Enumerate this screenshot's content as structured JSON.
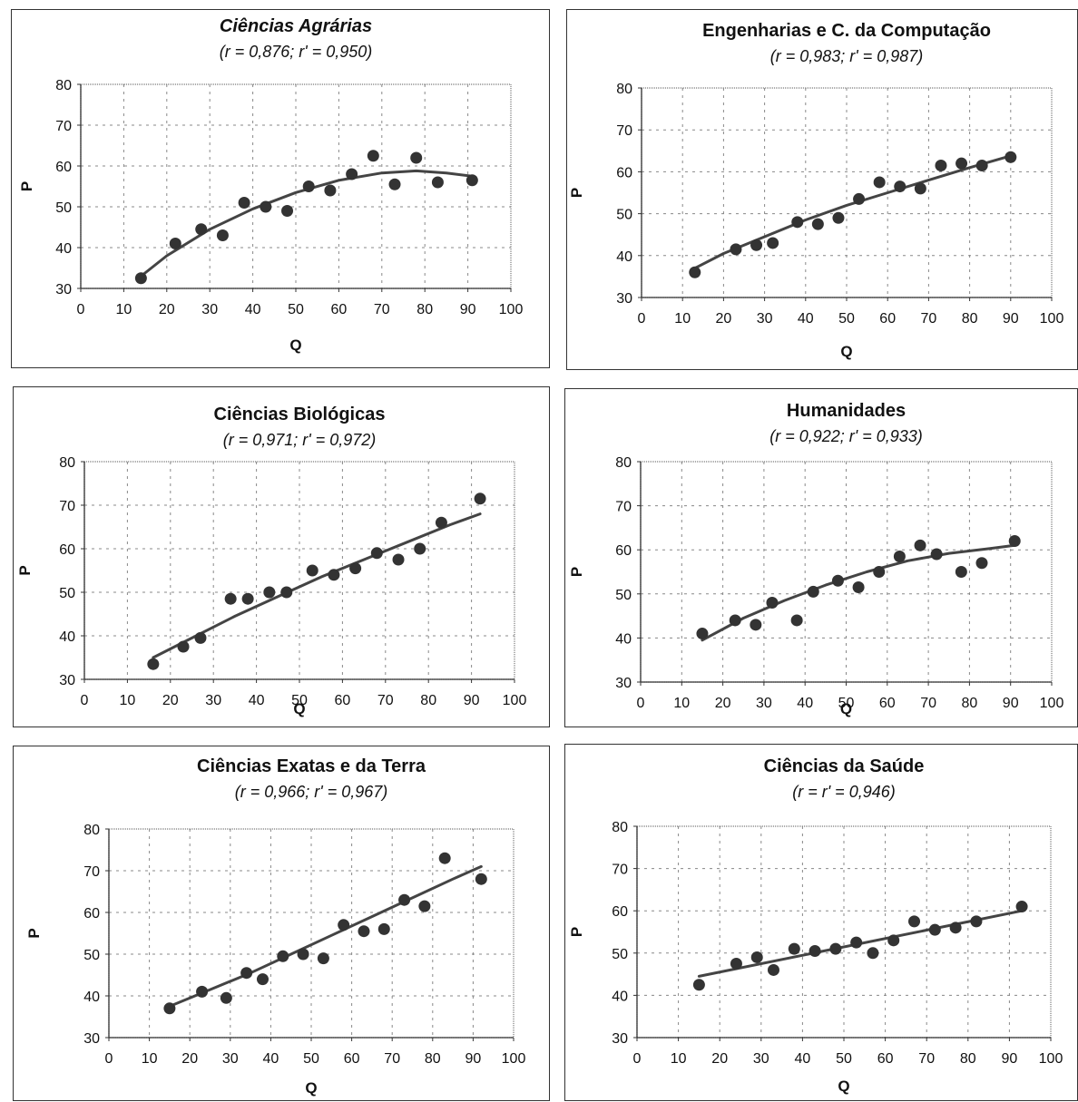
{
  "chart_data": [
    {
      "type": "scatter",
      "title": "Ciências Agrárias",
      "subtitle": "(r  = 0,876;  r' = 0,950)",
      "xlabel": "Q",
      "ylabel": "P",
      "xlim": [
        0,
        100
      ],
      "ylim": [
        30,
        80
      ],
      "xticks": [
        "0",
        "10",
        "20",
        "30",
        "40",
        "50",
        "60",
        "70",
        "80",
        "90",
        "100"
      ],
      "yticks": [
        "30",
        "40",
        "50",
        "60",
        "70",
        "80"
      ],
      "grid": true,
      "trend": "quadratic",
      "x": [
        14,
        22,
        28,
        33,
        38,
        43,
        48,
        53,
        58,
        63,
        68,
        73,
        78,
        83,
        91
      ],
      "y": [
        32.5,
        41,
        44.5,
        43,
        51,
        50,
        49,
        55,
        54,
        58,
        62.5,
        55.5,
        62,
        56,
        56.5
      ],
      "trend_x": [
        14,
        20,
        30,
        40,
        50,
        60,
        70,
        78,
        85,
        91
      ],
      "trend_y": [
        33,
        38,
        44.5,
        49.5,
        53.5,
        56.5,
        58.3,
        58.8,
        58.3,
        57.5
      ]
    },
    {
      "type": "scatter",
      "title": "Engenharias e C. da Computação",
      "subtitle": "(r = 0,983;  r' = 0,987)",
      "xlabel": "Q",
      "ylabel": "P",
      "xlim": [
        0,
        100
      ],
      "ylim": [
        30,
        80
      ],
      "xticks": [
        "0",
        "10",
        "20",
        "30",
        "40",
        "50",
        "60",
        "70",
        "80",
        "90",
        "100"
      ],
      "yticks": [
        "30",
        "40",
        "50",
        "60",
        "70",
        "80"
      ],
      "grid": true,
      "trend": "quadratic",
      "x": [
        13,
        23,
        28,
        32,
        38,
        43,
        48,
        53,
        58,
        63,
        68,
        73,
        78,
        83,
        90
      ],
      "y": [
        36,
        41.5,
        42.5,
        43,
        48,
        47.5,
        49,
        53.5,
        57.5,
        56.5,
        56,
        61.5,
        62,
        61.5,
        63.5
      ],
      "trend_x": [
        13,
        20,
        30,
        40,
        50,
        60,
        70,
        80,
        90
      ],
      "trend_y": [
        37,
        40.5,
        44.5,
        48.5,
        52,
        55,
        58,
        61,
        63.8
      ]
    },
    {
      "type": "scatter",
      "title": "Ciências Biológicas",
      "subtitle": "(r = 0,971;  r' = 0,972)",
      "xlabel": "Q",
      "ylabel": "P",
      "xlim": [
        0,
        100
      ],
      "ylim": [
        30,
        80
      ],
      "xticks": [
        "0",
        "10",
        "20",
        "30",
        "40",
        "50",
        "60",
        "70",
        "80",
        "90",
        "100"
      ],
      "yticks": [
        "30",
        "40",
        "50",
        "60",
        "70",
        "80"
      ],
      "grid": true,
      "trend": "quadratic",
      "x": [
        16,
        23,
        27,
        34,
        38,
        43,
        47,
        53,
        58,
        63,
        68,
        73,
        78,
        83,
        92
      ],
      "y": [
        33.5,
        37.5,
        39.5,
        48.5,
        48.5,
        50,
        50,
        55,
        54,
        55.5,
        59,
        57.5,
        60,
        66,
        71.5
      ],
      "trend_x": [
        16,
        25,
        35,
        45,
        55,
        65,
        75,
        85,
        92
      ],
      "trend_y": [
        35,
        39.5,
        44.5,
        49,
        53.5,
        57.5,
        61.5,
        65.5,
        68
      ]
    },
    {
      "type": "scatter",
      "title": "Humanidades",
      "subtitle": "(r = 0,922;  r' = 0,933)",
      "xlabel": "Q",
      "ylabel": "P",
      "xlim": [
        0,
        100
      ],
      "ylim": [
        30,
        80
      ],
      "xticks": [
        "0",
        "10",
        "20",
        "30",
        "40",
        "50",
        "60",
        "70",
        "80",
        "90",
        "100"
      ],
      "yticks": [
        "30",
        "40",
        "50",
        "60",
        "70",
        "80"
      ],
      "grid": true,
      "trend": "quadratic",
      "x": [
        15,
        23,
        28,
        32,
        38,
        42,
        48,
        53,
        58,
        63,
        68,
        72,
        78,
        83,
        91
      ],
      "y": [
        41,
        44,
        43,
        48,
        44,
        50.5,
        53,
        51.5,
        55,
        58.5,
        61,
        59,
        55,
        57,
        62
      ],
      "trend_x": [
        15,
        25,
        35,
        45,
        55,
        65,
        75,
        85,
        91
      ],
      "trend_y": [
        39.5,
        44.5,
        48.5,
        52,
        55,
        57.5,
        59.2,
        60.3,
        61
      ]
    },
    {
      "type": "scatter",
      "title": "Ciências Exatas e da Terra",
      "subtitle": "(r = 0,966;  r' = 0,967)",
      "xlabel": "Q",
      "ylabel": "P",
      "xlim": [
        0,
        100
      ],
      "ylim": [
        30,
        80
      ],
      "xticks": [
        "0",
        "10",
        "20",
        "30",
        "40",
        "50",
        "60",
        "70",
        "80",
        "90",
        "100"
      ],
      "yticks": [
        "30",
        "40",
        "50",
        "60",
        "70",
        "80"
      ],
      "grid": true,
      "trend": "quadratic",
      "x": [
        15,
        23,
        29,
        34,
        38,
        43,
        48,
        53,
        58,
        63,
        68,
        73,
        78,
        83,
        92
      ],
      "y": [
        37,
        41,
        39.5,
        45.5,
        44,
        49.5,
        50,
        49,
        57,
        55.5,
        56,
        63,
        61.5,
        73,
        68
      ],
      "trend_x": [
        15,
        25,
        35,
        45,
        55,
        65,
        75,
        85,
        92
      ],
      "trend_y": [
        37.5,
        41.5,
        45.5,
        50,
        54.5,
        59,
        63.5,
        68,
        71
      ]
    },
    {
      "type": "scatter",
      "title": "Ciências da Saúde",
      "subtitle": "(r = r' = 0,946)",
      "xlabel": "Q",
      "ylabel": "P",
      "xlim": [
        0,
        100
      ],
      "ylim": [
        30,
        80
      ],
      "xticks": [
        "0",
        "10",
        "20",
        "30",
        "40",
        "50",
        "60",
        "70",
        "80",
        "90",
        "100"
      ],
      "yticks": [
        "30",
        "40",
        "50",
        "60",
        "70",
        "80"
      ],
      "grid": true,
      "trend": "linear",
      "x": [
        15,
        24,
        29,
        33,
        38,
        43,
        48,
        53,
        57,
        62,
        67,
        72,
        77,
        82,
        93
      ],
      "y": [
        42.5,
        47.5,
        49,
        46,
        51,
        50.5,
        51,
        52.5,
        50,
        53,
        57.5,
        55.5,
        56,
        57.5,
        61
      ],
      "trend_x": [
        15,
        93
      ],
      "trend_y": [
        44.5,
        60
      ]
    }
  ],
  "colors": {
    "marker": "#333333",
    "trend": "#444444",
    "grid": "#888888",
    "frame": "#333333"
  }
}
